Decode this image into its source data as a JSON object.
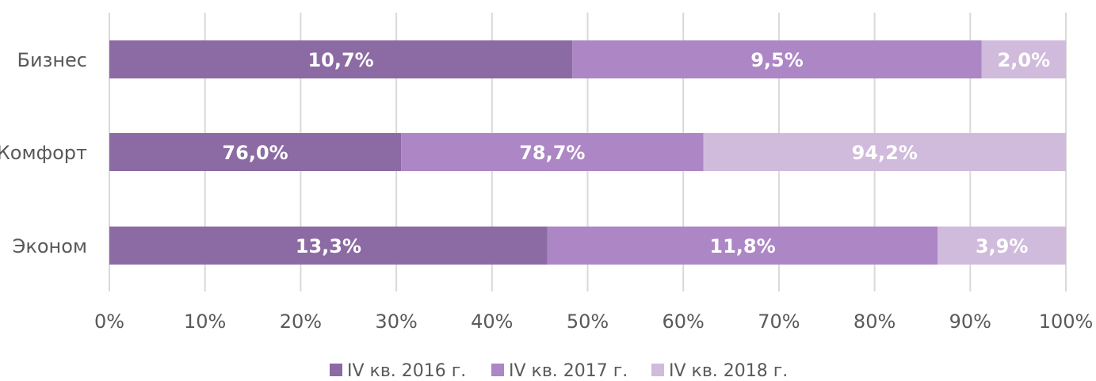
{
  "chart_data": {
    "type": "bar",
    "orientation": "horizontal",
    "stacked": "percent",
    "categories": [
      "Бизнес",
      "Комфорт",
      "Эконом"
    ],
    "series": [
      {
        "name": "IV кв. 2016 г.",
        "color": "#8c6aa3",
        "values": [
          10.7,
          76.0,
          13.3
        ],
        "labels": [
          "10,7%",
          "76,0%",
          "13,3%"
        ],
        "shares": [
          48.4,
          30.5,
          45.8
        ]
      },
      {
        "name": "IV кв. 2017 г.",
        "color": "#ac86c5",
        "values": [
          9.5,
          78.7,
          11.8
        ],
        "labels": [
          "9,5%",
          "78,7%",
          "11,8%"
        ],
        "shares": [
          42.8,
          31.6,
          40.8
        ]
      },
      {
        "name": "IV кв. 2018 г.",
        "color": "#d0bbdc",
        "values": [
          2.0,
          94.2,
          3.9
        ],
        "labels": [
          "2,0%",
          "94,2%",
          "3,9%"
        ],
        "shares": [
          8.8,
          37.9,
          13.4
        ]
      }
    ],
    "x_ticks": [
      "0%",
      "10%",
      "20%",
      "30%",
      "40%",
      "50%",
      "60%",
      "70%",
      "80%",
      "90%",
      "100%"
    ],
    "xlim": [
      0,
      100
    ],
    "grid": true,
    "gridline_color": "#d9d9d9",
    "legend_position": "bottom"
  }
}
